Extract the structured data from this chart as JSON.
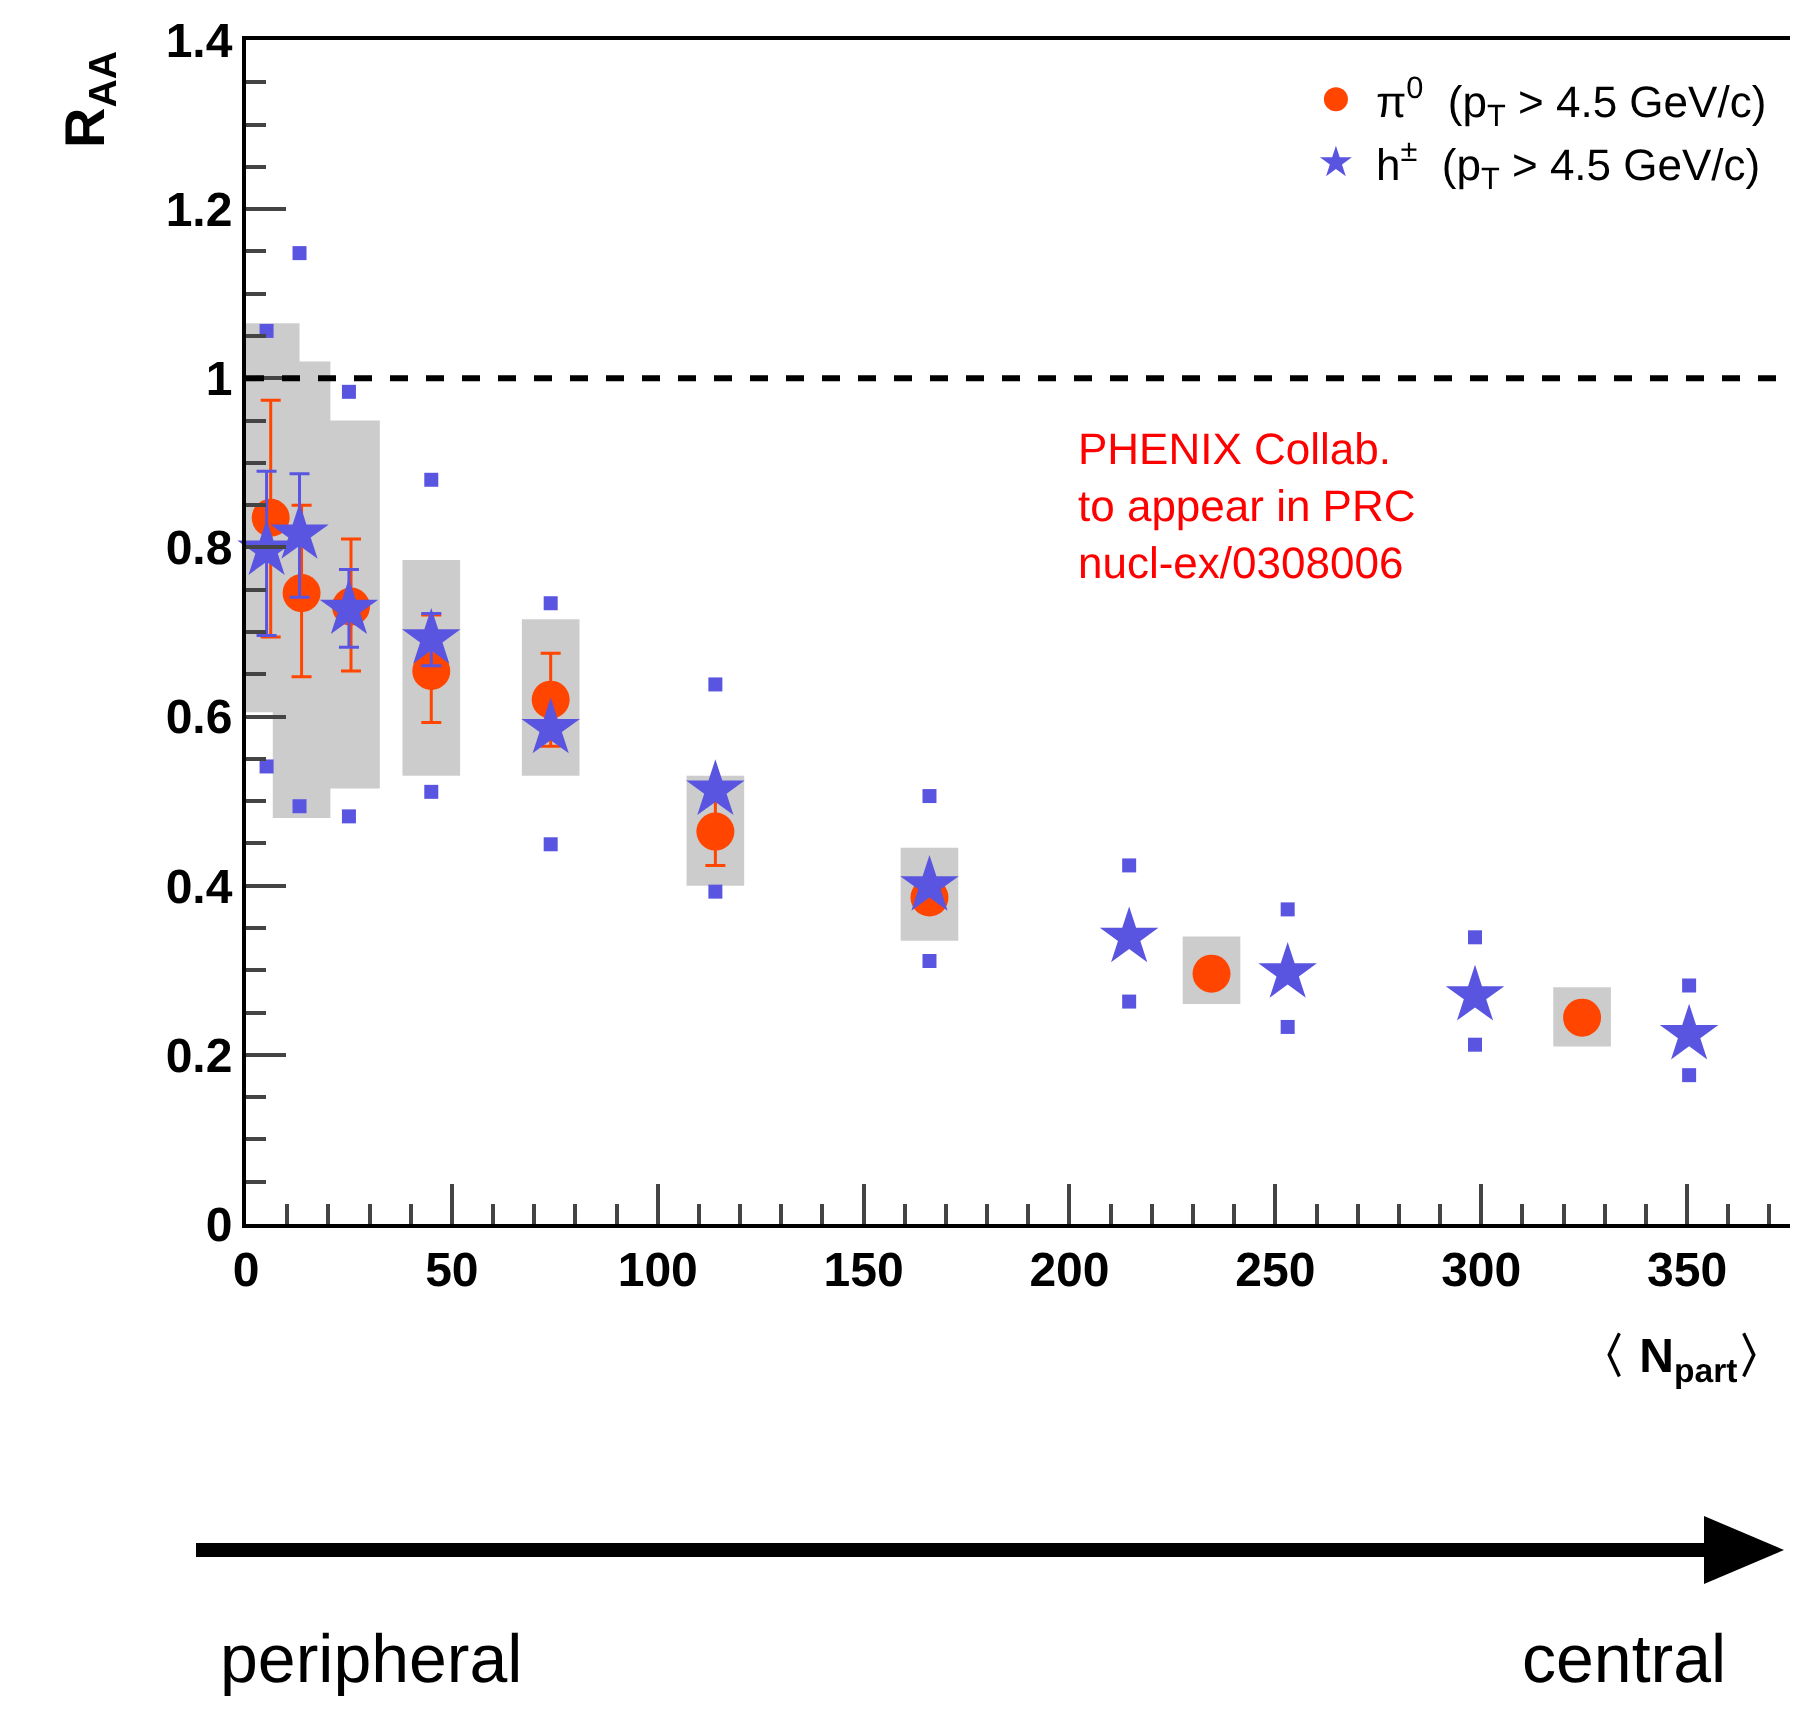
{
  "chart_data": {
    "type": "scatter",
    "xlabel": "〈 N$_{part}$〉",
    "ylabel": "R$_{AA}$",
    "xlim": [
      0,
      375
    ],
    "xticks": [
      0,
      50,
      100,
      150,
      200,
      250,
      300,
      350
    ],
    "ylim": [
      0,
      1.4
    ],
    "yticks": [
      0,
      0.2,
      0.4,
      0.6,
      0.8,
      1,
      1.2,
      1.4
    ],
    "grid": false,
    "legend": "top right",
    "ref_lines": [
      {
        "axis": "y",
        "value": 1,
        "color": "#000000",
        "line_style": "dashed"
      }
    ],
    "annotations": [
      "PHENIX Collab.\nto appear in PRC\nnucl-ex/0308006",
      "peripheral",
      "central"
    ],
    "series": [
      {
        "type": "bar",
        "color": "#cccccc",
        "x": [
          6,
          13.5,
          25.5,
          45,
          74,
          114,
          166,
          234.5,
          324.5
        ],
        "base": [
          0.605,
          0.48,
          0.515,
          0.53,
          0.53,
          0.4,
          0.335,
          0.26,
          0.21
        ],
        "values": [
          0.46,
          0.54,
          0.435,
          0.255,
          0.185,
          0.13,
          0.11,
          0.08,
          0.07
        ]
      },
      {
        "name": "π$^{0}$  (p$_{T}$ > 4.5 GeV/c)",
        "color": "#ff4500",
        "marker": "circle",
        "x": [
          6,
          13.5,
          25.5,
          45,
          74,
          114,
          166,
          234.5,
          324.5
        ],
        "values": [
          0.835,
          0.746,
          0.73,
          0.654,
          0.62,
          0.464,
          0.386,
          0.296,
          0.244
        ],
        "errors": [
          [
            0.694,
            0.974
          ],
          [
            0.647,
            0.85
          ],
          [
            0.654,
            0.81
          ],
          [
            0.593,
            0.72
          ],
          [
            0.565,
            0.675
          ],
          [
            0.424,
            0.504
          ],
          null,
          null,
          null
        ]
      },
      {
        "color": "#5a55e0",
        "marker": "square",
        "x": [
          5,
          13,
          25,
          45,
          74,
          114,
          166,
          214.5,
          253,
          298.5,
          350.5
        ],
        "values": [
          1.056,
          1.148,
          0.984,
          0.88,
          0.734,
          0.638,
          0.506,
          0.424,
          0.372,
          0.339,
          0.282
        ]
      },
      {
        "color": "#5a55e0",
        "marker": "square",
        "x": [
          5,
          13,
          25,
          45,
          74,
          114,
          166,
          214.5,
          253,
          298.5,
          350.5
        ],
        "values": [
          0.541,
          0.494,
          0.482,
          0.511,
          0.449,
          0.393,
          0.311,
          0.263,
          0.233,
          0.212,
          0.176
        ]
      },
      {
        "name": "h$^{±}$  (p$_{T}$ > 4.5 GeV/c)",
        "color": "#5a55e0",
        "marker": "star",
        "x": [
          5,
          13,
          25,
          45,
          74,
          114,
          166,
          214.5,
          253,
          298.5,
          350.5
        ],
        "values": [
          0.797,
          0.816,
          0.727,
          0.692,
          0.586,
          0.513,
          0.4,
          0.339,
          0.297,
          0.27,
          0.224
        ],
        "errors": [
          [
            0.696,
            0.89
          ],
          [
            0.741,
            0.887
          ],
          [
            0.682,
            0.774
          ],
          [
            0.66,
            0.722
          ],
          null,
          null,
          null,
          null,
          null,
          null,
          null
        ]
      }
    ]
  }
}
